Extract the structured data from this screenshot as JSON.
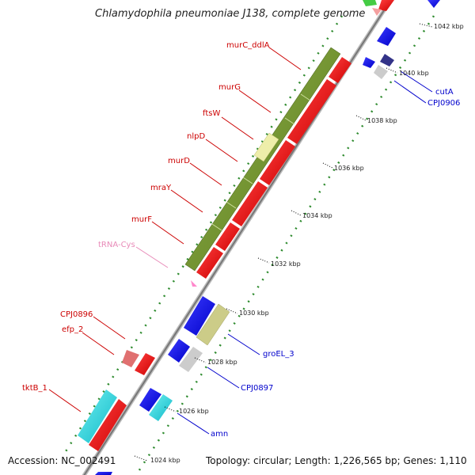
{
  "title": "Chlamydophila pneumoniae J138, complete genome",
  "footer": {
    "accession": "Accession: NC_002491",
    "info": "Topology: circular; Length: 1,226,565 bp; Genes: 1,110"
  },
  "scale_labels": [
    "1042 kbp",
    "1040 kbp",
    "1038 kbp",
    "1036 kbp",
    "1034 kbp",
    "1032 kbp",
    "1030 kbp",
    "1028 kbp",
    "1026 kbp",
    "1024 kbp"
  ],
  "gene_labels": [
    {
      "text": "murC_ddlA",
      "color": "#cc0000"
    },
    {
      "text": "murG",
      "color": "#cc0000"
    },
    {
      "text": "ftsW",
      "color": "#cc0000"
    },
    {
      "text": "nlpD",
      "color": "#cc0000"
    },
    {
      "text": "murD",
      "color": "#cc0000"
    },
    {
      "text": "mraY",
      "color": "#cc0000"
    },
    {
      "text": "murF",
      "color": "#cc0000"
    },
    {
      "text": "tRNA-Cys",
      "color": "#e88ab8"
    },
    {
      "text": "CPJ0896",
      "color": "#cc0000"
    },
    {
      "text": "efp_2",
      "color": "#cc0000"
    },
    {
      "text": "tktB_1",
      "color": "#cc0000"
    },
    {
      "text": "cutA",
      "color": "#0000cc"
    },
    {
      "text": "CPJ0906",
      "color": "#0000cc"
    },
    {
      "text": "groEL_3",
      "color": "#0000cc"
    },
    {
      "text": "CPJ0897",
      "color": "#0000cc"
    },
    {
      "text": "amn",
      "color": "#0000cc"
    }
  ]
}
